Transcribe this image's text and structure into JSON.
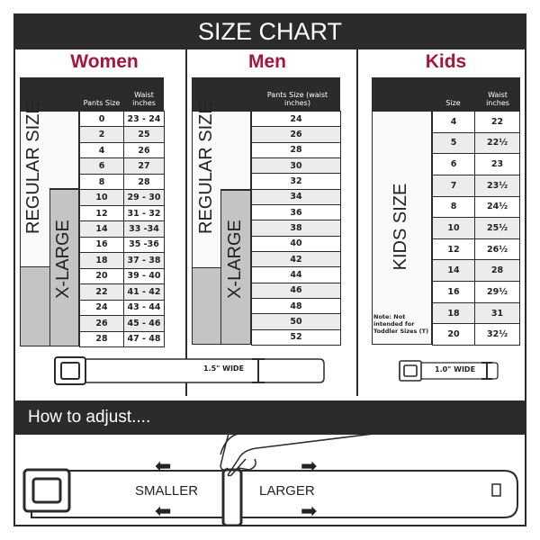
{
  "title": "SIZE CHART",
  "women": {
    "heading": "Women",
    "col1": "Pants Size",
    "col2": "Waist inches",
    "regular_label": "REGULAR SIZE",
    "xlarge_label": "X-LARGE",
    "rows": [
      [
        "0",
        "23 - 24"
      ],
      [
        "2",
        "25"
      ],
      [
        "4",
        "26"
      ],
      [
        "6",
        "27"
      ],
      [
        "8",
        "28"
      ],
      [
        "10",
        "29 - 30"
      ],
      [
        "12",
        "31 - 32"
      ],
      [
        "14",
        "33 -34"
      ],
      [
        "16",
        "35 -36"
      ],
      [
        "18",
        "37 - 38"
      ],
      [
        "20",
        "39 - 40"
      ],
      [
        "22",
        "41 - 42"
      ],
      [
        "24",
        "43 - 44"
      ],
      [
        "26",
        "45 - 46"
      ],
      [
        "28",
        "47 - 48"
      ]
    ],
    "belt_width": "1.5\" WIDE"
  },
  "men": {
    "heading": "Men",
    "col1": "Pants Size (waist inches)",
    "regular_label": "REGULAR SIZE",
    "xlarge_label": "X-LARGE",
    "rows": [
      "24",
      "26",
      "28",
      "30",
      "32",
      "34",
      "36",
      "38",
      "40",
      "42",
      "44",
      "46",
      "48",
      "50",
      "52"
    ]
  },
  "kids": {
    "heading": "Kids",
    "col1": "Size",
    "col2": "Waist inches",
    "label": "KIDS SIZE",
    "note": "Note: Not intended for Toddler Sizes (T)",
    "rows": [
      [
        "4",
        "22"
      ],
      [
        "5",
        "22½"
      ],
      [
        "6",
        "23"
      ],
      [
        "7",
        "23½"
      ],
      [
        "8",
        "24½"
      ],
      [
        "10",
        "25½"
      ],
      [
        "12",
        "26½"
      ],
      [
        "14",
        "28"
      ],
      [
        "16",
        "29½"
      ],
      [
        "18",
        "31"
      ],
      [
        "20",
        "32½"
      ]
    ],
    "belt_width": "1.0\" WIDE"
  },
  "adjust": {
    "heading": "How to adjust....",
    "smaller": "SMALLER",
    "larger": "LARGER"
  },
  "colors": {
    "dark": "#2b2b2b",
    "accent": "#a3173a",
    "xlarge_gray": "#c4c4c4"
  }
}
